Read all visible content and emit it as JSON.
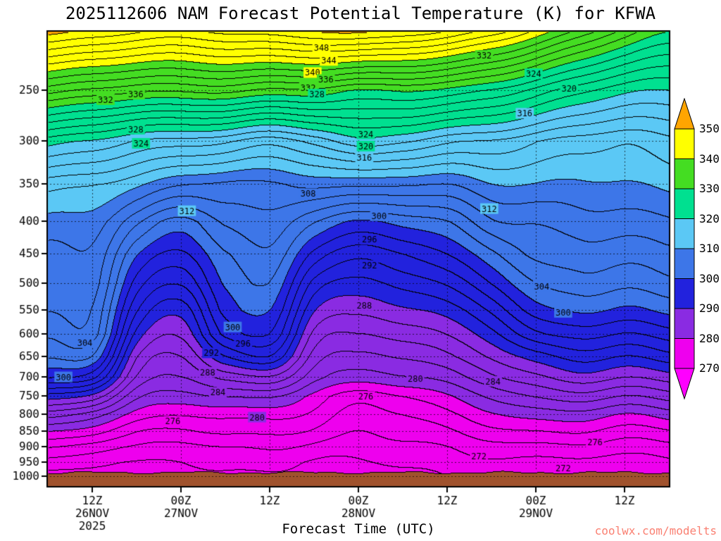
{
  "title": "2025112606 NAM Forecast Potential Temperature (K) for KFWA",
  "xlabel": "Forecast Time (UTC)",
  "watermark": "coolwx.com/modelts",
  "colorbar": {
    "labels": [
      "350",
      "340",
      "330",
      "320",
      "310",
      "300",
      "290",
      "280",
      "270"
    ]
  },
  "chart_data": {
    "type": "heatmap",
    "subtype": "filled_contour_time_height_cross_section",
    "title": "2025112606 NAM Forecast Potential Temperature (K) for KFWA",
    "xlabel": "Forecast Time (UTC)",
    "x_range_hours": [
      0,
      84
    ],
    "p_range_hpa": [
      202,
      1036
    ],
    "y_scale": "log-pressure",
    "grid": "dotted",
    "contour_interval_K": 2,
    "fill_interval_K": 10,
    "y_ticks_hpa": [
      250,
      300,
      350,
      400,
      450,
      500,
      550,
      600,
      650,
      700,
      750,
      800,
      850,
      900,
      950,
      1000
    ],
    "x_ticks": [
      {
        "hour": 6,
        "label": "12Z",
        "line2": "26NOV",
        "line3": "2025"
      },
      {
        "hour": 18,
        "label": "00Z",
        "line2": "27NOV"
      },
      {
        "hour": 30,
        "label": "12Z"
      },
      {
        "hour": 42,
        "label": "00Z",
        "line2": "28NOV"
      },
      {
        "hour": 54,
        "label": "12Z"
      },
      {
        "hour": 66,
        "label": "00Z",
        "line2": "29NOV"
      },
      {
        "hour": 78,
        "label": "12Z"
      }
    ],
    "fill_levels": [
      270,
      280,
      290,
      300,
      310,
      320,
      330,
      340,
      350
    ],
    "fill_colors": [
      "#FF00FF",
      "#EE00EE",
      "#8A2BE2",
      "#2222DD",
      "#3D76E8",
      "#5BC8F5",
      "#00E090",
      "#44DD22",
      "#FFFF00",
      "#FFA500"
    ],
    "ground": {
      "pressure_hpa": 985,
      "color": "#A0522D"
    },
    "x_hours": [
      0,
      6,
      12,
      18,
      24,
      30,
      36,
      42,
      48,
      54,
      60,
      66,
      72,
      78,
      84
    ],
    "pressure_levels_hpa": [
      200,
      250,
      300,
      350,
      400,
      450,
      500,
      550,
      600,
      650,
      700,
      750,
      800,
      850,
      900,
      950,
      1000,
      1040
    ],
    "theta_K": [
      [
        351,
        350,
        349,
        348.5,
        349,
        349.5,
        350.5,
        352,
        351,
        349.5,
        346,
        342,
        338,
        334,
        331
      ],
      [
        335,
        334,
        333,
        332.5,
        332,
        331,
        331,
        330,
        330,
        329,
        327,
        325,
        323,
        321,
        320.5
      ],
      [
        321,
        320,
        318,
        317,
        316,
        315,
        317,
        320,
        318,
        316,
        315,
        314,
        313,
        312,
        313
      ],
      [
        313,
        312,
        310,
        307.5,
        307,
        308,
        309,
        309,
        308,
        308,
        310,
        310.5,
        310,
        309.5,
        310
      ],
      [
        310,
        309,
        304,
        300.5,
        304,
        305.5,
        302,
        299.5,
        300,
        302,
        306,
        307,
        307.5,
        307,
        307.5
      ],
      [
        308,
        307.5,
        300,
        297.5,
        302,
        304,
        297,
        294,
        295,
        298,
        301.5,
        305,
        305,
        304.5,
        305.5
      ],
      [
        307,
        306.5,
        297,
        294.5,
        301,
        302.5,
        293,
        291,
        292,
        294.5,
        298,
        302,
        302.5,
        302,
        303.5
      ],
      [
        306,
        305,
        294,
        291,
        299.5,
        300.5,
        290,
        288.5,
        289.5,
        291.5,
        294.5,
        299,
        299.5,
        299,
        300.5
      ],
      [
        304,
        304,
        291,
        288.5,
        297,
        298,
        287,
        286,
        287,
        289,
        291.5,
        295.5,
        296,
        295.5,
        297
      ],
      [
        302,
        301,
        288,
        286,
        292,
        293.5,
        284.5,
        283.5,
        284.5,
        286.5,
        288.5,
        291,
        292.5,
        292,
        293.5
      ],
      [
        298,
        296,
        286,
        284,
        286.5,
        287,
        282,
        281,
        282,
        283.5,
        285.5,
        287.5,
        289,
        288.5,
        289.5
      ],
      [
        291,
        289,
        283,
        281.5,
        282,
        281.5,
        278.5,
        276.5,
        278,
        280,
        282,
        284,
        285,
        284.5,
        285.5
      ],
      [
        285,
        283,
        280,
        278.5,
        278.5,
        278,
        277,
        275,
        276,
        277.5,
        279,
        280.5,
        281,
        280.5,
        281.5
      ],
      [
        280,
        279,
        277,
        276,
        276.5,
        276,
        275.5,
        274.2,
        274.8,
        275.5,
        276.5,
        277.5,
        278,
        277.5,
        278
      ],
      [
        276,
        275,
        274.5,
        273.5,
        274,
        274,
        273.5,
        273.4,
        273.6,
        273.8,
        274.2,
        274.8,
        275.2,
        275.2,
        275.2
      ],
      [
        273,
        272.5,
        272.5,
        272,
        272.5,
        272.5,
        272,
        272.4,
        272.5,
        272.7,
        272.8,
        273,
        273.2,
        273.2,
        273.2
      ],
      [
        271,
        271,
        271.5,
        271,
        271.5,
        271.5,
        271.5,
        271.5,
        271.8,
        272,
        272.2,
        272.4,
        272.5,
        272.5,
        272.5
      ],
      [
        270.7,
        270.7,
        271.2,
        270.7,
        271.2,
        271.2,
        271.2,
        271.2,
        271.5,
        271.7,
        271.9,
        272.1,
        272.2,
        272.2,
        272.2
      ]
    ],
    "contour_labels": [
      {
        "v": 348,
        "t": 37,
        "p": 215
      },
      {
        "v": 344,
        "t": 38,
        "p": 225
      },
      {
        "v": 340,
        "t": 35.8,
        "p": 235
      },
      {
        "v": 336,
        "t": 37.6,
        "p": 241
      },
      {
        "v": 332,
        "t": 35.2,
        "p": 248
      },
      {
        "v": 328,
        "t": 36.4,
        "p": 254
      },
      {
        "v": 336,
        "t": 11.9,
        "p": 254
      },
      {
        "v": 332,
        "t": 7.8,
        "p": 259
      },
      {
        "v": 328,
        "t": 11.9,
        "p": 288
      },
      {
        "v": 324,
        "t": 12.6,
        "p": 303
      },
      {
        "v": 324,
        "t": 43,
        "p": 293
      },
      {
        "v": 320,
        "t": 43,
        "p": 306
      },
      {
        "v": 316,
        "t": 42.8,
        "p": 319
      },
      {
        "v": 316,
        "t": 64.5,
        "p": 272
      },
      {
        "v": 320,
        "t": 70.5,
        "p": 249
      },
      {
        "v": 324,
        "t": 65.7,
        "p": 236
      },
      {
        "v": 332,
        "t": 59,
        "p": 221
      },
      {
        "v": 308,
        "t": 35.2,
        "p": 363
      },
      {
        "v": 312,
        "t": 18.8,
        "p": 386
      },
      {
        "v": 312,
        "t": 59.7,
        "p": 383
      },
      {
        "v": 300,
        "t": 44.8,
        "p": 393
      },
      {
        "v": 296,
        "t": 43.5,
        "p": 428
      },
      {
        "v": 292,
        "t": 43.5,
        "p": 470
      },
      {
        "v": 288,
        "t": 42.8,
        "p": 542
      },
      {
        "v": 304,
        "t": 5,
        "p": 620
      },
      {
        "v": 300,
        "t": 2.1,
        "p": 701
      },
      {
        "v": 300,
        "t": 25,
        "p": 586
      },
      {
        "v": 296,
        "t": 26.4,
        "p": 621
      },
      {
        "v": 292,
        "t": 22.1,
        "p": 643
      },
      {
        "v": 288,
        "t": 21.6,
        "p": 689
      },
      {
        "v": 284,
        "t": 23,
        "p": 741
      },
      {
        "v": 280,
        "t": 28.3,
        "p": 810
      },
      {
        "v": 276,
        "t": 16.9,
        "p": 822
      },
      {
        "v": 280,
        "t": 49.7,
        "p": 706
      },
      {
        "v": 276,
        "t": 43,
        "p": 752
      },
      {
        "v": 284,
        "t": 60.2,
        "p": 712
      },
      {
        "v": 304,
        "t": 66.8,
        "p": 506
      },
      {
        "v": 300,
        "t": 69.7,
        "p": 556
      },
      {
        "v": 272,
        "t": 58.3,
        "p": 932
      },
      {
        "v": 276,
        "t": 74,
        "p": 886
      },
      {
        "v": 272,
        "t": 69.7,
        "p": 972
      }
    ]
  }
}
